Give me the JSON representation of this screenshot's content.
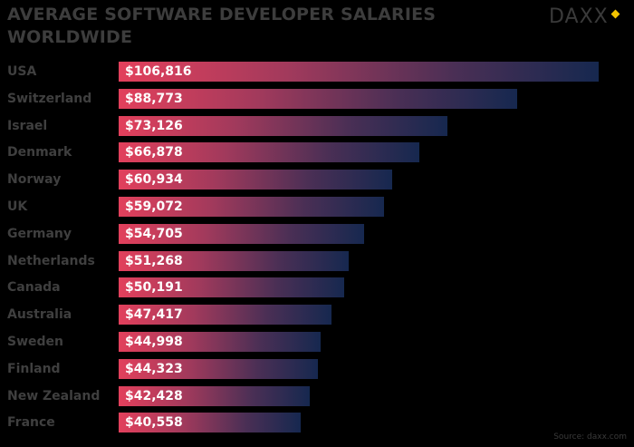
{
  "chart_data": {
    "type": "bar",
    "orientation": "horizontal",
    "title": "AVERAGE SOFTWARE DEVELOPER SALARIES WORLDWIDE",
    "categories": [
      "USA",
      "Switzerland",
      "Israel",
      "Denmark",
      "Norway",
      "UK",
      "Germany",
      "Netherlands",
      "Canada",
      "Australia",
      "Sweden",
      "Finland",
      "New Zealand",
      "France"
    ],
    "values": [
      106816,
      88773,
      73126,
      66878,
      60934,
      59072,
      54705,
      51268,
      50191,
      47417,
      44998,
      44323,
      42428,
      40558
    ],
    "labels": [
      "$106,816",
      "$88,773",
      "$73,126",
      "$66,878",
      "$60,934",
      "$59,072",
      "$54,705",
      "$51,268",
      "$50,191",
      "$47,417",
      "$44,998",
      "$44,323",
      "$42,428",
      "$40,558"
    ],
    "xlim": [
      0,
      106816
    ],
    "grid": false,
    "colors": {
      "bar_start": "#e2405c",
      "bar_end": "#16284f",
      "background": "#000000"
    }
  },
  "logo_text": "DAXX",
  "source": "Source: daxx.com"
}
